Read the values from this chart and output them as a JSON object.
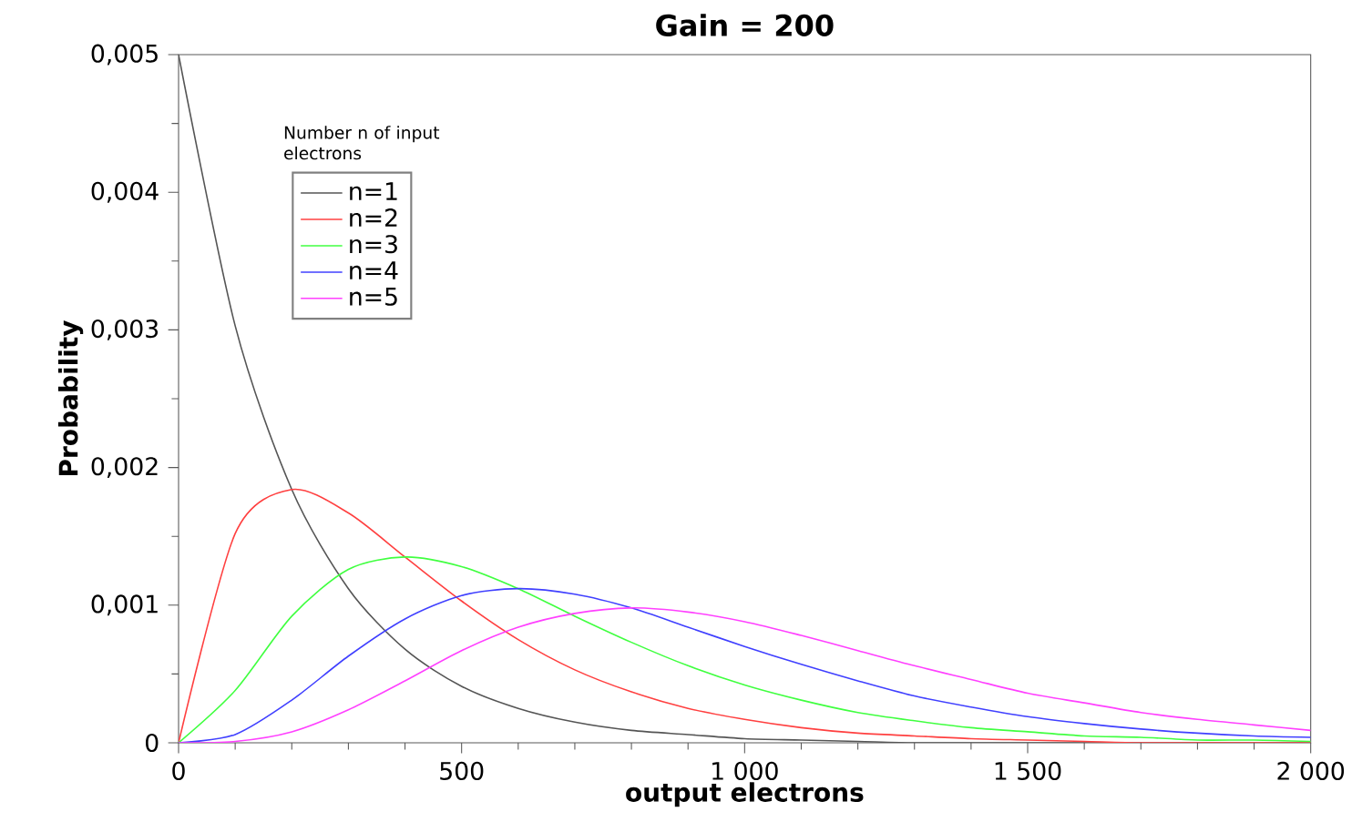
{
  "chart_data": {
    "type": "line",
    "title": "Gain = 200",
    "xlabel": "output electrons",
    "ylabel": "Probability",
    "legend_title": "Number n of input electrons",
    "x": [
      0,
      100,
      200,
      300,
      400,
      500,
      600,
      700,
      800,
      900,
      1000,
      1100,
      1200,
      1300,
      1400,
      1500,
      1600,
      1700,
      1800,
      1900,
      2000
    ],
    "series": [
      {
        "name": "n=1",
        "color": "#555555",
        "values": [
          0.005,
          0.00303,
          0.00184,
          0.00112,
          0.00068,
          0.00041,
          0.00025,
          0.00015,
          9e-05,
          6e-05,
          3e-05,
          2e-05,
          1e-05,
          0,
          0,
          0,
          0,
          0,
          0,
          0,
          0
        ]
      },
      {
        "name": "n=2",
        "color": "#ff4040",
        "values": [
          0,
          0.00152,
          0.00184,
          0.00167,
          0.00135,
          0.00103,
          0.00075,
          0.00053,
          0.00037,
          0.00025,
          0.00017,
          0.00011,
          7e-05,
          5e-05,
          3e-05,
          2e-05,
          1e-05,
          0,
          0,
          0,
          0
        ]
      },
      {
        "name": "n=3",
        "color": "#40ff40",
        "values": [
          0,
          0.00038,
          0.00092,
          0.00126,
          0.00135,
          0.00128,
          0.00112,
          0.00092,
          0.00073,
          0.00056,
          0.00042,
          0.00031,
          0.00022,
          0.00016,
          0.00011,
          8e-05,
          5e-05,
          4e-05,
          2e-05,
          2e-05,
          1e-05
        ]
      },
      {
        "name": "n=4",
        "color": "#4040ff",
        "values": [
          0,
          6e-05,
          0.00031,
          0.00063,
          0.0009,
          0.00107,
          0.00112,
          0.00108,
          0.00098,
          0.00084,
          0.0007,
          0.00057,
          0.00045,
          0.00034,
          0.00026,
          0.00019,
          0.00014,
          0.0001,
          7e-05,
          5e-05,
          4e-05
        ]
      },
      {
        "name": "n=5",
        "color": "#ff40ff",
        "values": [
          0,
          1e-05,
          8e-05,
          0.00024,
          0.00045,
          0.00067,
          0.00084,
          0.00094,
          0.00098,
          0.00095,
          0.00088,
          0.00078,
          0.00067,
          0.00056,
          0.00046,
          0.00036,
          0.00029,
          0.00022,
          0.00017,
          0.00013,
          9e-05
        ]
      }
    ],
    "xlim": [
      0,
      2000
    ],
    "ylim": [
      0,
      0.005
    ],
    "xticks": [
      0,
      500,
      {
        "value": 1000,
        "label": "1 000"
      },
      {
        "value": 1500,
        "label": "1 500"
      },
      {
        "value": 2000,
        "label": "2 000"
      }
    ],
    "yticks": [
      0,
      {
        "value": 0.001,
        "label": "0,001"
      },
      {
        "value": 0.002,
        "label": "0,002"
      },
      {
        "value": 0.003,
        "label": "0,003"
      },
      {
        "value": 0.004,
        "label": "0,004"
      },
      {
        "value": 0.005,
        "label": "0,005"
      }
    ],
    "grid": false,
    "legend": "top left",
    "marker": "none",
    "line_style": "solid"
  }
}
